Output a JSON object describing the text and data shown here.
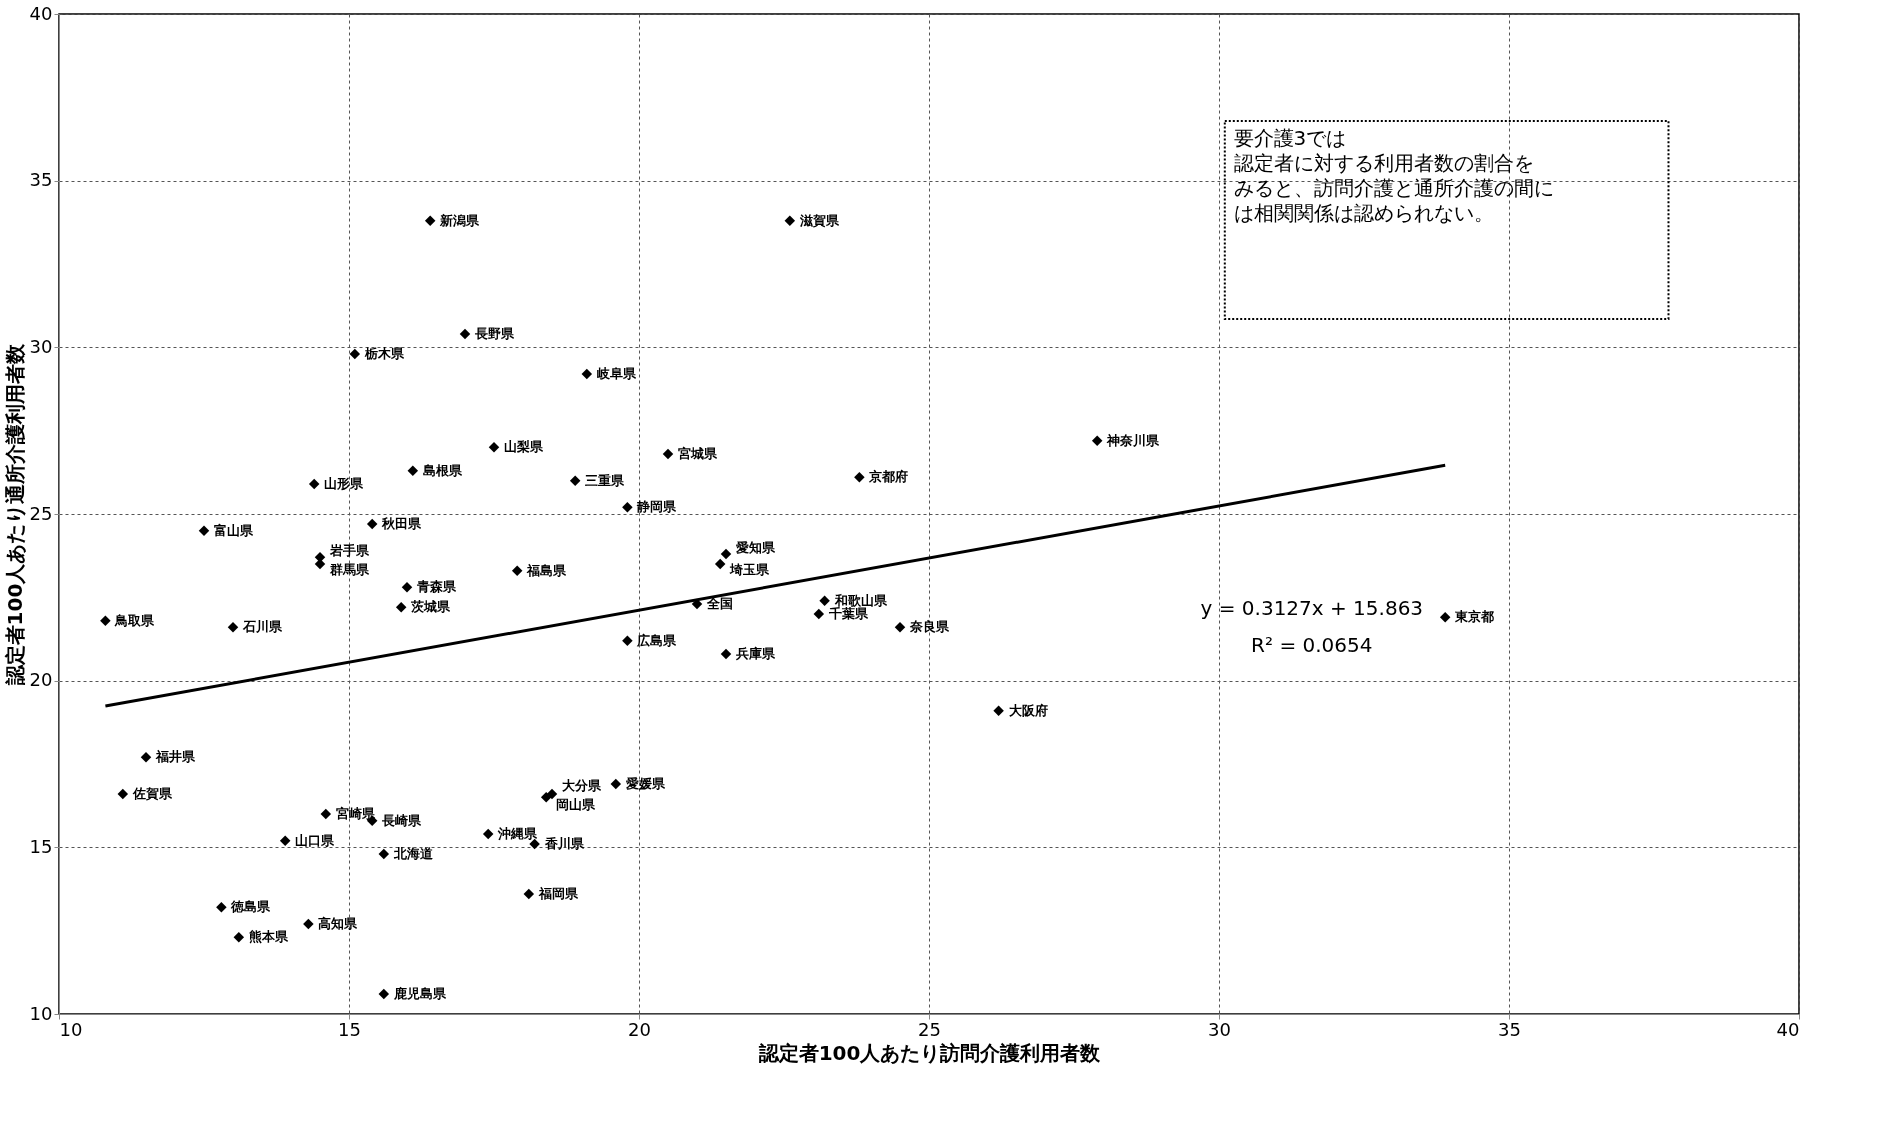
{
  "chart_data": {
    "type": "scatter",
    "xlabel": "認定者100人あたり訪問介護利用者数",
    "ylabel": "認定者100人あたり通所介護利用者数",
    "xlim": [
      10,
      40
    ],
    "xticks": [
      10,
      15,
      20,
      25,
      30,
      35,
      40
    ],
    "ylim": [
      10,
      40
    ],
    "yticks": [
      10,
      15,
      20,
      25,
      30,
      35,
      40
    ],
    "grid": true,
    "series": [
      {
        "color": "#000000",
        "marker": "diamond",
        "x": [
          16.4,
          22.6,
          17.0,
          15.1,
          19.1,
          27.9,
          17.5,
          20.5,
          16.1,
          23.8,
          18.9,
          14.4,
          19.8,
          15.4,
          12.5,
          14.5,
          21.5,
          21.4,
          14.5,
          17.9,
          16.0,
          23.2,
          15.9,
          23.1,
          10.8,
          33.9,
          13.0,
          24.5,
          19.8,
          21.5,
          26.2,
          11.5,
          11.1,
          19.6,
          18.5,
          18.4,
          14.6,
          15.4,
          17.4,
          13.9,
          18.2,
          15.6,
          18.1,
          12.8,
          14.3,
          13.1,
          15.6
        ],
        "values": [
          33.8,
          33.8,
          30.4,
          29.8,
          29.2,
          27.2,
          27.0,
          26.8,
          26.3,
          26.1,
          26.0,
          25.9,
          25.2,
          24.7,
          24.5,
          23.7,
          23.8,
          23.5,
          23.5,
          23.3,
          22.8,
          22.4,
          22.2,
          22.0,
          21.8,
          21.9,
          21.6,
          21.6,
          21.2,
          20.8,
          19.1,
          17.7,
          16.6,
          16.9,
          16.6,
          16.5,
          16.0,
          15.8,
          15.4,
          15.2,
          15.1,
          14.8,
          13.6,
          13.2,
          12.7,
          12.3,
          10.6
        ],
        "value_labels": [
          "新潟県",
          "滋賀県",
          "長野県",
          "栃木県",
          "岐阜県",
          "神奈川県",
          "山梨県",
          "宮城県",
          "島根県",
          "京都府",
          "三重県",
          "山形県",
          "静岡県",
          "秋田県",
          "富山県",
          "岩手県",
          "愛知県",
          "埼玉県",
          "群馬県",
          "福島県",
          "青森県",
          "和歌山県",
          "茨城県",
          "千葉県",
          "鳥取県",
          "東京都",
          "石川県",
          "奈良県",
          "広島県",
          "兵庫県",
          "大阪府",
          "福井県",
          "佐賀県",
          "愛媛県",
          "大分県",
          "岡山県",
          "宮崎県",
          "長崎県",
          "沖縄県",
          "山口県",
          "香川県",
          "北海道",
          "福岡県",
          "徳島県",
          "高知県",
          "熊本県",
          "鹿児島県"
        ]
      },
      {
        "color": "#000000",
        "marker": "diamond",
        "x": [
          21.0
        ],
        "values": [
          22.3
        ],
        "value_labels": [
          "全国"
        ]
      },
      {
        "type": "line",
        "color": "#000000",
        "x": [
          10.8,
          33.9
        ],
        "values": [
          19.24,
          26.46
        ]
      }
    ],
    "annotations": [
      "要介護3では",
      "認定者に対する利用者数の割合を",
      "みると、訪問介護と通所介護の間に",
      "は相関関係は認められない。",
      "y = 0.3127x + 15.863",
      "R² = 0.0654"
    ]
  }
}
